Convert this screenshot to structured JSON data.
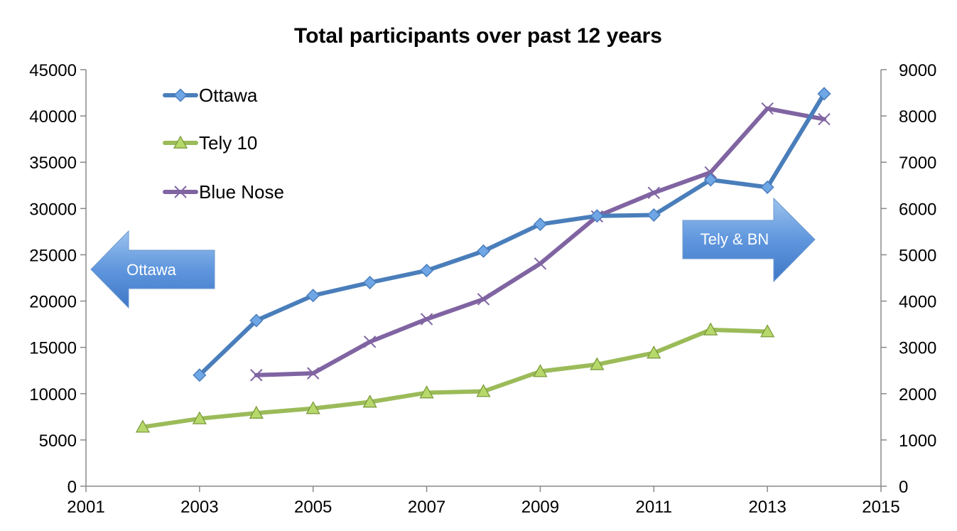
{
  "chart_data": {
    "type": "line",
    "title": "Total participants over past 12 years",
    "x_ticks": [
      "2001",
      "2003",
      "2005",
      "2007",
      "2009",
      "2011",
      "2013",
      "2015"
    ],
    "xlim": [
      2001,
      2015
    ],
    "y_left_ticks": [
      "0",
      "5000",
      "10000",
      "15000",
      "20000",
      "25000",
      "30000",
      "35000",
      "40000",
      "45000"
    ],
    "ylim_left": [
      0,
      45000
    ],
    "y_right_ticks": [
      "0",
      "1000",
      "2000",
      "3000",
      "4000",
      "5000",
      "6000",
      "7000",
      "8000",
      "9000"
    ],
    "ylim_right": [
      0,
      9000
    ],
    "grid": false,
    "legend_position": "top-left",
    "series": [
      {
        "name": "Ottawa",
        "axis": "left",
        "color": "#4a7ebb",
        "marker": "diamond",
        "x": [
          2003,
          2004,
          2005,
          2006,
          2007,
          2008,
          2009,
          2010,
          2011,
          2012,
          2013,
          2014
        ],
        "values": [
          12000,
          17900,
          20600,
          22000,
          23300,
          25400,
          28300,
          29200,
          29300,
          33100,
          32300,
          42400
        ]
      },
      {
        "name": "Tely 10",
        "axis": "right",
        "color": "#9bbb59",
        "marker": "triangle",
        "x": [
          2002,
          2003,
          2004,
          2005,
          2006,
          2007,
          2008,
          2009,
          2010,
          2011,
          2012,
          2013
        ],
        "values": [
          1280,
          1460,
          1580,
          1680,
          1820,
          2020,
          2050,
          2480,
          2630,
          2880,
          3380,
          3340
        ]
      },
      {
        "name": "Blue Nose",
        "axis": "right",
        "color": "#8064a2",
        "marker": "x",
        "x": [
          2004,
          2005,
          2006,
          2007,
          2008,
          2009,
          2010,
          2011,
          2012,
          2013,
          2014
        ],
        "values": [
          2400,
          2440,
          3120,
          3610,
          4040,
          4810,
          5830,
          6340,
          6780,
          8160,
          7930
        ]
      }
    ],
    "annotations": [
      {
        "label": "Ottawa",
        "direction": "left"
      },
      {
        "label": "Tely & BN",
        "direction": "right"
      }
    ]
  }
}
